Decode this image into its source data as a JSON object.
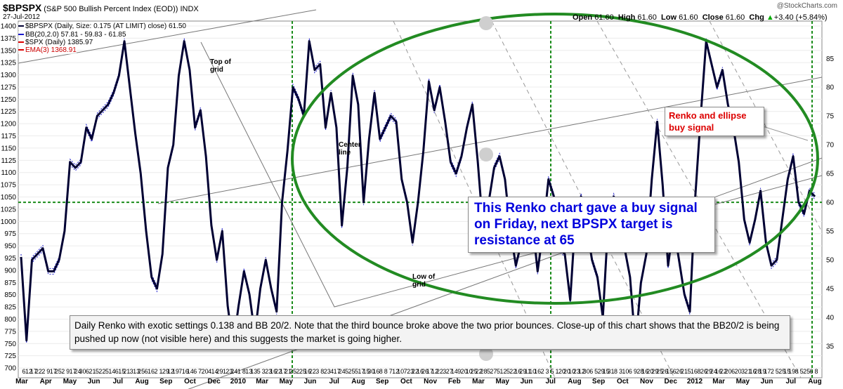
{
  "header": {
    "symbol": "$BPSPX",
    "name": "(S&P 500 Bullish Percent Index (EOD)) INDX",
    "date": "27-Jul-2012",
    "watermark": "@StockCharts.com",
    "open_label": "Open",
    "open": "61.60",
    "high_label": "High",
    "high": "61.60",
    "low_label": "Low",
    "low": "61.60",
    "close_label": "Close",
    "close": "61.60",
    "chg_label": "Chg",
    "chg": "+3.40 (+5.84%)",
    "chg_arrow": "▲"
  },
  "legend": {
    "bpspx": "$BPSPX (Daily, Size: 0.175 (AT LIMIT) close) 61.50",
    "bb": "BB(20,2.0) 57.81 - 59.83 - 61.85",
    "spx": "$SPX (Daily) 1385.97",
    "ema": "EMA(3) 1368.91"
  },
  "annotations": {
    "top_grid": "Top of grid",
    "center_line": "Center line",
    "low_grid": "Low of grid",
    "buy_signal": "Renko and ellipse buy signal",
    "blue_note": "This Renko chart gave a buy signal on Friday, next BPSPX target is resistance at 65",
    "gray_note": "Daily Renko with exotic settings 0.138 and BB 20/2. Note that the third bounce broke above the two prior bounces. Close-up of this chart shows that the BB20/2 is being pushed up now (not visible here) and this suggests the market is going higher."
  },
  "colors": {
    "renko": "#000033",
    "bollinger": "#1a1acc",
    "spx": "#dd0000",
    "ellipse": "#228b22",
    "grid_dotted": "#1a8c1a",
    "trend_lines": "#777777"
  },
  "chart_data": {
    "type": "line",
    "left_axis": {
      "label": "",
      "range": [
        680,
        1410
      ],
      "ticks": [
        700,
        725,
        750,
        775,
        800,
        825,
        850,
        875,
        900,
        925,
        950,
        975,
        1000,
        1025,
        1050,
        1075,
        1100,
        1125,
        1150,
        1175,
        1200,
        1225,
        1250,
        1275,
        1300,
        1325,
        1350,
        1375,
        1400
      ]
    },
    "right_axis": {
      "label": "",
      "range": [
        29.5,
        91.5
      ],
      "ticks": [
        35,
        40,
        45,
        50,
        55,
        60,
        65,
        70,
        75,
        80,
        85
      ]
    },
    "x_ticks": [
      "6",
      "12",
      "17",
      "22",
      "2",
      "9",
      "17",
      "25",
      "2",
      "9",
      "17",
      "24",
      "30",
      "6",
      "21",
      "5",
      "22",
      "5",
      "14",
      "6",
      "15",
      "21",
      "3",
      "13",
      "25",
      "6",
      "16",
      "2",
      "1",
      "29",
      "12",
      "19",
      "7",
      "16",
      "14",
      "6",
      "7",
      "20",
      "4",
      "14",
      "29",
      "1",
      "23",
      "24",
      "1",
      "8",
      "13",
      "13",
      "5",
      "3",
      "23",
      "16",
      "22",
      "17",
      "21",
      "25",
      "2",
      "25",
      "16",
      "22",
      "3",
      "8",
      "23",
      "4",
      "17",
      "24",
      "5",
      "25",
      "5",
      "17",
      "15",
      "30",
      "16",
      "8",
      "8",
      "7",
      "12",
      "10",
      "7",
      "23",
      "22",
      "16",
      "26",
      "17",
      "12",
      "22",
      "3",
      "27",
      "14",
      "9",
      "20",
      "10",
      "25",
      "22",
      "28",
      "5",
      "27",
      "5",
      "12",
      "5",
      "22",
      "16",
      "29",
      "11",
      "10",
      "16",
      "2",
      "3",
      "5",
      "1",
      "20",
      "20",
      "10",
      "23",
      "12",
      "30",
      "6",
      "5",
      "29",
      "15",
      "31",
      "8",
      "3",
      "10",
      "6",
      "9",
      "28",
      "16",
      "20",
      "29",
      "25",
      "26",
      "15",
      "6",
      "26",
      "21",
      "5",
      "16",
      "8",
      "26",
      "29",
      "24",
      "16",
      "22",
      "20",
      "6",
      "20",
      "3",
      "21",
      "16",
      "28",
      "19",
      "17",
      "2",
      "5",
      "25",
      "15",
      "19",
      "8",
      "5",
      "25",
      "6",
      "8"
    ],
    "month_labels": [
      "Mar",
      "Apr",
      "May",
      "Jun",
      "Jul",
      "Aug",
      "Sep",
      "Oct",
      "Dec",
      "2010",
      "Mar",
      "May",
      "Jun",
      "Jul",
      "Aug",
      "Sep",
      "Oct",
      "Nov",
      "Feb",
      "Mar",
      "May",
      "Jun",
      "Jul",
      "Aug",
      "Sep",
      "Oct",
      "Nov",
      "Dec",
      "2012",
      "Mar",
      "May",
      "Jun",
      "Jul",
      "Aug"
    ],
    "series": [
      {
        "name": "$BPSPX",
        "values": [
          50.5,
          36,
          50,
          51,
          52,
          48,
          48,
          50,
          55,
          67,
          66,
          67,
          73,
          71,
          75,
          76,
          77,
          79,
          82,
          88,
          80,
          72,
          65,
          55,
          47,
          45,
          51,
          66,
          70,
          82,
          88,
          83,
          73,
          76,
          68,
          56,
          50,
          55,
          42,
          35,
          42,
          48,
          44,
          37,
          45,
          50,
          45,
          41,
          60,
          69,
          80,
          78,
          75,
          88,
          83,
          84,
          73,
          79,
          73,
          56,
          66,
          82,
          77,
          60,
          71,
          79,
          71,
          73,
          75,
          74,
          64,
          60,
          53,
          60,
          69,
          81,
          76,
          80,
          74,
          67,
          65,
          68,
          73,
          77,
          67,
          55,
          60,
          66,
          68,
          64,
          55,
          49,
          53,
          59,
          57,
          48,
          55,
          64,
          61,
          52,
          51,
          43,
          58,
          61,
          56,
          50,
          47,
          40,
          57,
          61,
          58,
          52,
          47,
          35,
          46,
          51,
          64,
          74,
          63,
          49,
          56,
          50,
          44,
          41,
          61,
          75,
          88,
          84,
          80,
          83,
          77,
          73,
          67,
          57,
          53,
          57,
          62,
          53,
          49,
          50,
          57,
          64,
          68,
          60,
          58,
          62,
          61
        ]
      },
      {
        "name": "$SPX",
        "values": []
      }
    ]
  }
}
